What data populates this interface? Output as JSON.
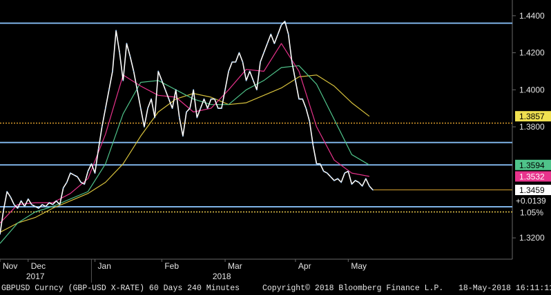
{
  "chart_data": {
    "type": "line",
    "title": "GBPUSD Curncy (GBP-USD X-RATE) 60 Days 240 Minutes",
    "ylim": [
      1.3085,
      1.4485
    ],
    "y_ticks": [
      "1.4400",
      "1.4200",
      "1.4000",
      "1.3800",
      "1.3200"
    ],
    "x_months": [
      {
        "label": "Nov",
        "x": 0
      },
      {
        "label": "Dec",
        "x": 8
      },
      {
        "label": "Jan",
        "x": 27
      },
      {
        "label": "Feb",
        "x": 46
      },
      {
        "label": "Mar",
        "x": 64
      },
      {
        "label": "Apr",
        "x": 84
      },
      {
        "label": "May",
        "x": 99
      }
    ],
    "x_years": [
      {
        "label": "2017",
        "x": 9
      },
      {
        "label": "2018",
        "x": 62
      }
    ],
    "series": [
      {
        "color": "#ffffff",
        "x": [
          0,
          1,
          2,
          3,
          4,
          5,
          6,
          7,
          8,
          9,
          10,
          11,
          12,
          13,
          14,
          15,
          16,
          17,
          18,
          19,
          20,
          21,
          22,
          23,
          24,
          25,
          26,
          27,
          28,
          29,
          30,
          31,
          32,
          33,
          34,
          35,
          36,
          37,
          38,
          39,
          40,
          41,
          42,
          43,
          44,
          45,
          46,
          47,
          48,
          49,
          50,
          51,
          52,
          53,
          54,
          55,
          56,
          57,
          58,
          59,
          60,
          61,
          62,
          63,
          64,
          65,
          66,
          67,
          68,
          69,
          70,
          71,
          72,
          73,
          74,
          75,
          76,
          77,
          78,
          79,
          80,
          81,
          82,
          83,
          84,
          85,
          86,
          87,
          88,
          89,
          90,
          91,
          92,
          93,
          94,
          95,
          96,
          97,
          98,
          99,
          100,
          101,
          102,
          103,
          104,
          105,
          106
        ],
        "values": [
          1.322,
          1.335,
          1.345,
          1.342,
          1.338,
          1.336,
          1.34,
          1.337,
          1.341,
          1.338,
          1.337,
          1.336,
          1.338,
          1.337,
          1.339,
          1.338,
          1.34,
          1.338,
          1.347,
          1.35,
          1.355,
          1.354,
          1.353,
          1.35,
          1.349,
          1.356,
          1.36,
          1.355,
          1.368,
          1.38,
          1.39,
          1.4,
          1.41,
          1.432,
          1.42,
          1.405,
          1.425,
          1.418,
          1.41,
          1.4,
          1.39,
          1.38,
          1.39,
          1.395,
          1.385,
          1.41,
          1.405,
          1.4,
          1.395,
          1.39,
          1.4,
          1.385,
          1.375,
          1.388,
          1.39,
          1.4,
          1.385,
          1.39,
          1.395,
          1.39,
          1.395,
          1.395,
          1.39,
          1.39,
          1.4,
          1.41,
          1.415,
          1.415,
          1.42,
          1.415,
          1.405,
          1.41,
          1.405,
          1.4,
          1.415,
          1.42,
          1.425,
          1.43,
          1.425,
          1.43,
          1.435,
          1.437,
          1.43,
          1.415,
          1.405,
          1.395,
          1.395,
          1.39,
          1.383,
          1.37,
          1.36,
          1.36,
          1.356,
          1.355,
          1.353,
          1.351,
          1.352,
          1.35,
          1.355,
          1.356,
          1.349,
          1.351,
          1.35,
          1.348,
          1.352,
          1.348,
          1.3459
        ]
      },
      {
        "color": "#e8338c",
        "x": [
          0,
          5,
          10,
          15,
          20,
          25,
          30,
          35,
          40,
          45,
          50,
          55,
          60,
          65,
          70,
          75,
          80,
          85,
          90,
          95,
          100,
          105
        ],
        "values": [
          1.328,
          1.338,
          1.339,
          1.339,
          1.344,
          1.352,
          1.376,
          1.408,
          1.402,
          1.397,
          1.396,
          1.388,
          1.39,
          1.4,
          1.411,
          1.41,
          1.425,
          1.41,
          1.38,
          1.362,
          1.355,
          1.3532
        ]
      },
      {
        "color": "#4fc38a",
        "x": [
          0,
          5,
          10,
          15,
          20,
          25,
          30,
          35,
          40,
          45,
          50,
          55,
          60,
          65,
          70,
          75,
          80,
          85,
          90,
          95,
          100,
          105
        ],
        "values": [
          1.317,
          1.328,
          1.334,
          1.337,
          1.341,
          1.345,
          1.36,
          1.387,
          1.404,
          1.405,
          1.4,
          1.395,
          1.392,
          1.392,
          1.4,
          1.405,
          1.412,
          1.413,
          1.403,
          1.384,
          1.365,
          1.3594
        ]
      },
      {
        "color": "#d9c33d",
        "x": [
          0,
          5,
          10,
          15,
          20,
          25,
          30,
          35,
          40,
          45,
          50,
          55,
          60,
          65,
          70,
          75,
          80,
          85,
          90,
          95,
          100,
          105
        ],
        "values": [
          1.323,
          1.328,
          1.331,
          1.336,
          1.34,
          1.344,
          1.35,
          1.36,
          1.375,
          1.388,
          1.395,
          1.398,
          1.396,
          1.392,
          1.393,
          1.397,
          1.401,
          1.407,
          1.408,
          1.402,
          1.393,
          1.3857
        ]
      }
    ],
    "horizontal_lines": [
      {
        "value": 1.436,
        "color": "#7fb4e8",
        "style": "solid"
      },
      {
        "value": 1.3715,
        "color": "#7fb4e8",
        "style": "solid"
      },
      {
        "value": 1.3594,
        "color": "#7fb4e8",
        "style": "solid"
      },
      {
        "value": 1.3368,
        "color": "#7fb4e8",
        "style": "solid"
      },
      {
        "value": 1.382,
        "color": "#d99b2b",
        "style": "dotted"
      },
      {
        "value": 1.334,
        "color": "#e8c74a",
        "style": "dotted"
      }
    ],
    "last_value_line": {
      "value": 1.3459,
      "color": "#d9a530"
    },
    "price_tags": [
      {
        "value": 1.3857,
        "label": "1.3857",
        "bg": "#f0e050",
        "fg": "#000000"
      },
      {
        "value": 1.3594,
        "label": "1.3594",
        "bg": "#4fc38a",
        "fg": "#000000"
      },
      {
        "value": 1.3532,
        "label": "1.3532",
        "bg": "#e8338c",
        "fg": "#ffffff"
      },
      {
        "value": 1.3459,
        "label": "1.3459",
        "bg": "#ffffff",
        "fg": "#000000"
      }
    ],
    "change_labels": {
      "change": "+0.0139",
      "pct": "1.05%"
    }
  },
  "footer": {
    "security": "GBPUSD Curncy (GBP-USD X-RATE) 60 Days 240 Minutes",
    "copyright": "Copyright© 2018 Bloomberg Finance L.P.",
    "timestamp": "18-May-2018 16:11:11"
  }
}
